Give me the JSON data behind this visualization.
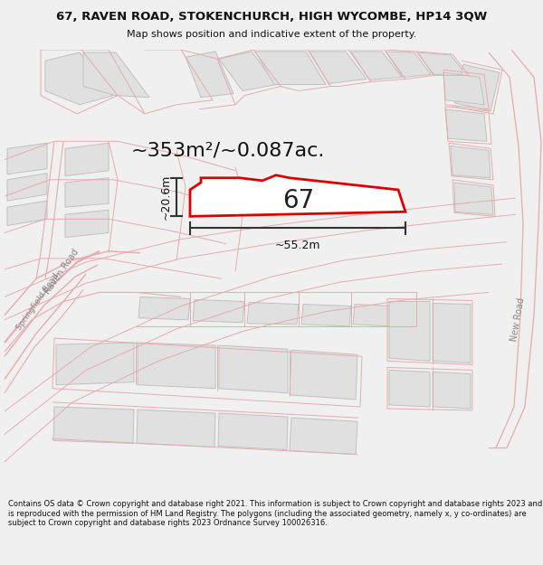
{
  "title_line1": "67, RAVEN ROAD, STOKENCHURCH, HIGH WYCOMBE, HP14 3QW",
  "title_line2": "Map shows position and indicative extent of the property.",
  "area_text": "~353m²/~0.087ac.",
  "label_67": "67",
  "dim_width": "~55.2m",
  "dim_height": "~20.6m",
  "footer_text": "Contains OS data © Crown copyright and database right 2021. This information is subject to Crown copyright and database rights 2023 and is reproduced with the permission of HM Land Registry. The polygons (including the associated geometry, namely x, y co-ordinates) are subject to Crown copyright and database rights 2023 Ordnance Survey 100026316.",
  "bg_color": "#f0f0f0",
  "map_bg": "#ffffff",
  "road_line_color": "#e8aaaa",
  "building_fill": "#e0e0e0",
  "building_edge": "#c0c0c0",
  "highlight_fill": "#ffffff",
  "highlight_edge": "#dd0000",
  "highlight_edge_width": 2.0,
  "dim_line_color": "#333333",
  "road_label_color": "#888888",
  "title_color": "#111111",
  "footer_color": "#111111",
  "title_fontsize": 9.5,
  "subtitle_fontsize": 8.0,
  "area_fontsize": 16,
  "dim_fontsize": 9,
  "label_fontsize": 20,
  "footer_fontsize": 6.0
}
